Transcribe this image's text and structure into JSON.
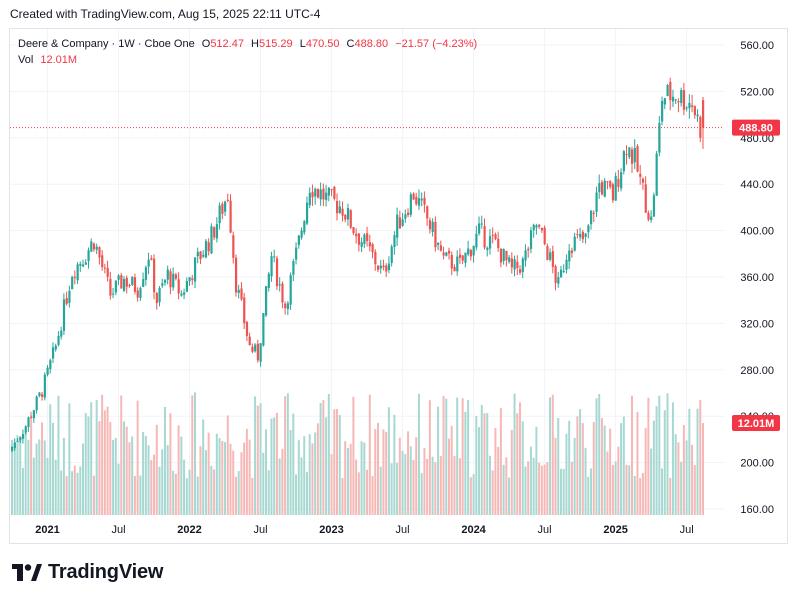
{
  "caption": "Created with TradingView.com, Aug 15, 2025 22:11 UTC-4",
  "legend": {
    "symbol": "Deere & Company · 1W · Cboe One",
    "open_label": "O",
    "open_value": "512.47",
    "high_label": "H",
    "high_value": "515.29",
    "low_label": "L",
    "low_value": "470.50",
    "close_label": "C",
    "close_value": "488.80",
    "change": "−21.57 (−4.23%)",
    "vol_label": "Vol",
    "vol_value": "12.01M"
  },
  "branding": {
    "logo_text": "TradingView",
    "logo_icon": "tradingview-logo-icon"
  },
  "colors": {
    "up": "#26a69a",
    "down": "#ef5350",
    "up_vol": "#a7d8d2",
    "down_vol": "#f6b8b6",
    "last_price": "#f23645"
  },
  "chart_data": {
    "type": "candlestick",
    "title": "Deere & Company · 1W · Cboe One",
    "y_axis": {
      "position": "right",
      "ticks": [
        "560.00",
        "520.00",
        "480.00",
        "440.00",
        "400.00",
        "360.00",
        "320.00",
        "280.00",
        "240.00",
        "200.00",
        "160.00"
      ],
      "range": [
        160,
        565
      ]
    },
    "x_axis": {
      "ticks": [
        "2021",
        "Jul",
        "2022",
        "Jul",
        "2023",
        "Jul",
        "2024",
        "Jul",
        "2025",
        "Jul"
      ],
      "range": [
        "2020-10-05",
        "2025-08-11"
      ]
    },
    "last_price_label": "488.80",
    "last_volume_label": "12.01M",
    "grid": true,
    "price_path": [
      [
        "2020-10-05",
        210
      ],
      [
        "2020-11-16",
        232
      ],
      [
        "2020-12-28",
        262
      ],
      [
        "2021-02-01",
        300
      ],
      [
        "2021-03-15",
        365
      ],
      [
        "2021-04-19",
        380
      ],
      [
        "2021-05-10",
        392
      ],
      [
        "2021-06-21",
        345
      ],
      [
        "2021-07-26",
        358
      ],
      [
        "2021-08-30",
        350
      ],
      [
        "2021-09-27",
        380
      ],
      [
        "2021-10-18",
        340
      ],
      [
        "2021-11-15",
        362
      ],
      [
        "2021-12-20",
        345
      ],
      [
        "2022-01-31",
        375
      ],
      [
        "2022-03-07",
        395
      ],
      [
        "2022-04-18",
        432
      ],
      [
        "2022-05-09",
        355
      ],
      [
        "2022-06-13",
        300
      ],
      [
        "2022-07-04",
        292
      ],
      [
        "2022-08-08",
        378
      ],
      [
        "2022-09-12",
        335
      ],
      [
        "2022-10-17",
        390
      ],
      [
        "2022-11-14",
        440
      ],
      [
        "2022-12-26",
        428
      ],
      [
        "2023-02-06",
        420
      ],
      [
        "2023-03-13",
        398
      ],
      [
        "2023-04-17",
        382
      ],
      [
        "2023-05-22",
        362
      ],
      [
        "2023-06-26",
        405
      ],
      [
        "2023-08-07",
        432
      ],
      [
        "2023-09-11",
        410
      ],
      [
        "2023-10-23",
        375
      ],
      [
        "2023-12-04",
        370
      ],
      [
        "2024-01-22",
        398
      ],
      [
        "2024-03-04",
        388
      ],
      [
        "2024-04-15",
        365
      ],
      [
        "2024-05-13",
        372
      ],
      [
        "2024-06-17",
        405
      ],
      [
        "2024-07-15",
        382
      ],
      [
        "2024-08-12",
        352
      ],
      [
        "2024-09-09",
        390
      ],
      [
        "2024-10-21",
        392
      ],
      [
        "2024-11-25",
        440
      ],
      [
        "2024-12-30",
        430
      ],
      [
        "2025-02-03",
        475
      ],
      [
        "2025-02-24",
        460
      ],
      [
        "2025-04-07",
        408
      ],
      [
        "2025-05-05",
        515
      ],
      [
        "2025-06-09",
        518
      ],
      [
        "2025-07-21",
        510
      ],
      [
        "2025-08-11",
        488.8
      ]
    ]
  }
}
